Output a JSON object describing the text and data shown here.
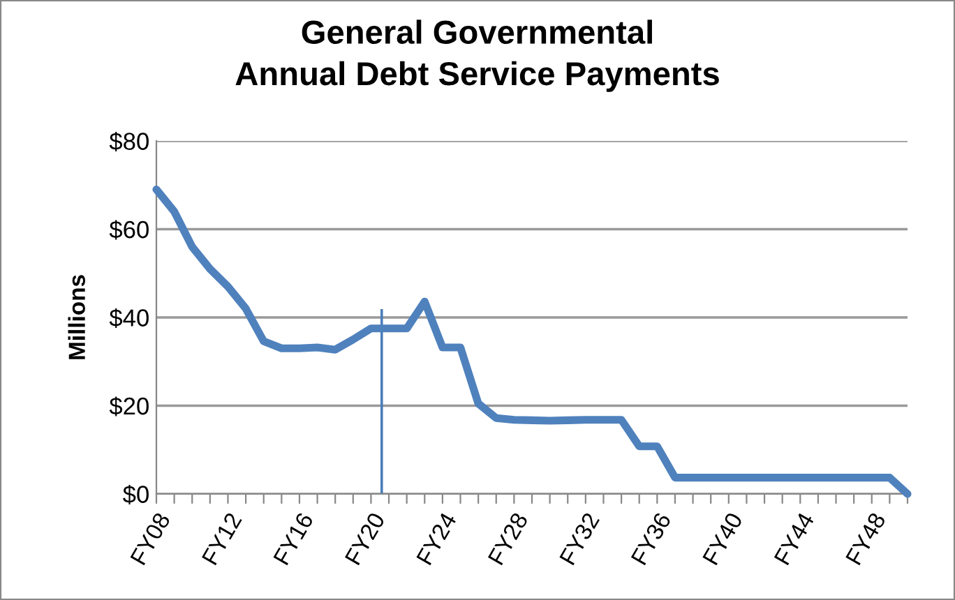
{
  "chart_data": {
    "type": "line",
    "title": "General Governmental\nAnnual Debt Service Payments",
    "ylabel": "Millions",
    "categories": [
      "FY08",
      null,
      null,
      null,
      "FY12",
      null,
      null,
      null,
      "FY16",
      null,
      null,
      null,
      "FY20",
      null,
      null,
      null,
      "FY24",
      null,
      null,
      null,
      "FY28",
      null,
      null,
      null,
      "FY32",
      null,
      null,
      null,
      "FY36",
      null,
      null,
      null,
      "FY40",
      null,
      null,
      null,
      "FY44",
      null,
      null,
      null,
      "FY48",
      null,
      null
    ],
    "series": [
      {
        "color": "#4f81bd",
        "values": [
          69,
          64,
          56,
          51,
          47,
          42,
          34.6,
          33,
          33,
          33.2,
          32.7,
          35,
          37.5,
          37.5,
          37.5,
          43.6,
          33.2,
          33.2,
          20.5,
          17.2,
          16.8,
          16.7,
          16.6,
          16.7,
          16.8,
          16.8,
          16.8,
          10.8,
          10.8,
          3.7,
          3.7,
          3.7,
          3.7,
          3.7,
          3.7,
          3.7,
          3.7,
          3.7,
          3.7,
          3.7,
          3.7,
          3.7,
          0
        ]
      }
    ],
    "ylim": [
      0,
      80
    ],
    "yticks": [
      {
        "value": 0,
        "label": "$0"
      },
      {
        "value": 20,
        "label": "$20"
      },
      {
        "value": 40,
        "label": "$40"
      },
      {
        "value": 60,
        "label": "$60"
      },
      {
        "value": 80,
        "label": "$80"
      }
    ],
    "grid": "y",
    "marker": "none",
    "line_style": "solid"
  }
}
